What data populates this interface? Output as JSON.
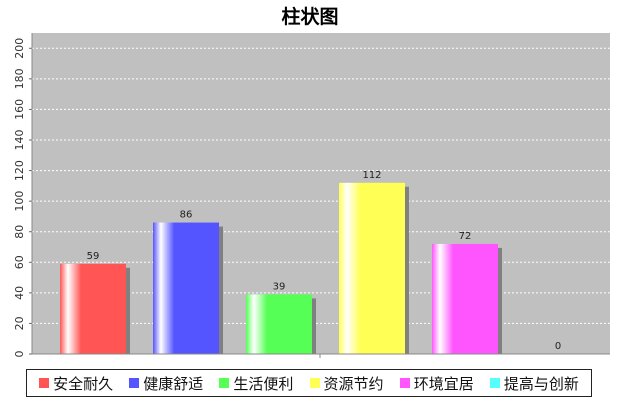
{
  "chart_data": {
    "type": "bar",
    "title": "柱状图",
    "xlabel": "",
    "ylabel": "",
    "ylim": [
      0,
      210
    ],
    "yticks": [
      0,
      20,
      40,
      60,
      80,
      100,
      120,
      140,
      160,
      180,
      200
    ],
    "grid": true,
    "legend_position": "bottom",
    "series": [
      {
        "name": "安全耐久",
        "value": 59,
        "color": "#ff5555"
      },
      {
        "name": "健康舒适",
        "value": 86,
        "color": "#5555ff"
      },
      {
        "name": "生活便利",
        "value": 39,
        "color": "#55ff55"
      },
      {
        "name": "资源节约",
        "value": 112,
        "color": "#ffff55"
      },
      {
        "name": "环境宜居",
        "value": 72,
        "color": "#ff55ff"
      },
      {
        "name": "提高与创新",
        "value": 0,
        "color": "#55ffff"
      }
    ]
  }
}
